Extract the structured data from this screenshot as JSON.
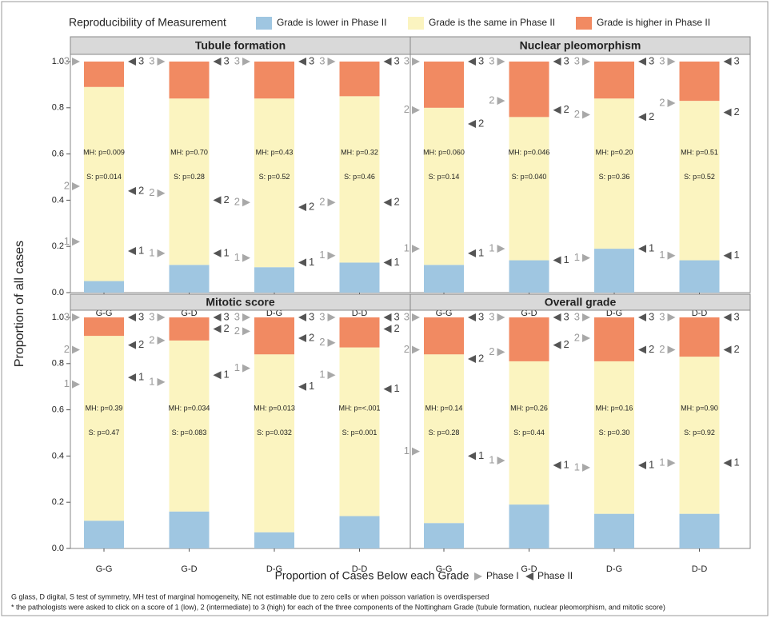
{
  "chart_data": {
    "type": "bar",
    "stacked": true,
    "legend_title": "Reproducibility of Measurement",
    "series": [
      {
        "name": "Grade is lower in Phase II",
        "color": "#9fc6e1"
      },
      {
        "name": "Grade is the same in Phase II",
        "color": "#fbf4c0"
      },
      {
        "name": "Grade is higher in Phase II",
        "color": "#f18a62"
      }
    ],
    "y_label": "Proportion of all cases",
    "x_label": "Proportion of Cases Below each Grade",
    "marker_legend": [
      {
        "name": "Phase I",
        "color": "#a8a8a8"
      },
      {
        "name": "Phase II",
        "color": "#555555"
      }
    ],
    "grade_labels": [
      "1",
      "2",
      "3"
    ],
    "categories": [
      "G-G",
      "G-D",
      "D-G",
      "D-D"
    ],
    "ylim": [
      0,
      1
    ],
    "yticks": [
      {
        "value": 0,
        "label": "0.0"
      },
      0.2,
      0.4,
      0.6,
      0.8,
      {
        "value": 1,
        "label": "1.0"
      }
    ],
    "panels": [
      {
        "title": "Tubule formation",
        "values": [
          [
            0.05,
            0.84,
            0.11
          ],
          [
            0.12,
            0.72,
            0.16
          ],
          [
            0.11,
            0.73,
            0.16
          ],
          [
            0.13,
            0.72,
            0.15
          ]
        ],
        "mh": [
          "MH: p=0.009",
          "MH: p=0.70",
          "MH: p=0.43",
          "MH: p=0.32"
        ],
        "s": [
          "S: p=0.014",
          "S: p=0.28",
          "S: p=0.52",
          "S: p=0.46"
        ],
        "phase_i": [
          [
            0.22,
            0.46,
            1
          ],
          [
            0.17,
            0.43,
            1
          ],
          [
            0.15,
            0.39,
            1
          ],
          [
            0.16,
            0.39,
            1
          ]
        ],
        "phase_ii": [
          [
            0.18,
            0.44,
            1
          ],
          [
            0.17,
            0.4,
            1
          ],
          [
            0.13,
            0.37,
            1
          ],
          [
            0.13,
            0.39,
            1
          ]
        ]
      },
      {
        "title": "Nuclear pleomorphism",
        "values": [
          [
            0.12,
            0.68,
            0.2
          ],
          [
            0.14,
            0.62,
            0.24
          ],
          [
            0.19,
            0.65,
            0.16
          ],
          [
            0.14,
            0.69,
            0.17
          ]
        ],
        "mh": [
          "MH: p=0.060",
          "MH: p=0.046",
          "MH: p=0.20",
          "MH: p=0.51"
        ],
        "s": [
          "S: p=0.14",
          "S: p=0.040",
          "S: p=0.36",
          "S: p=0.52"
        ],
        "phase_i": [
          [
            0.19,
            0.79,
            1
          ],
          [
            0.19,
            0.83,
            1
          ],
          [
            0.15,
            0.77,
            1
          ],
          [
            0.16,
            0.82,
            1
          ]
        ],
        "phase_ii": [
          [
            0.17,
            0.73,
            1
          ],
          [
            0.14,
            0.79,
            1
          ],
          [
            0.19,
            0.76,
            1
          ],
          [
            0.16,
            0.78,
            1
          ]
        ]
      },
      {
        "title": "Mitotic score",
        "values": [
          [
            0.12,
            0.8,
            0.08
          ],
          [
            0.16,
            0.74,
            0.1
          ],
          [
            0.07,
            0.77,
            0.16
          ],
          [
            0.14,
            0.73,
            0.13
          ]
        ],
        "mh": [
          "MH: p=0.39",
          "MH: p=0.034",
          "MH: p=0.013",
          "MH: p=<.001"
        ],
        "s": [
          "S: p=0.47",
          "S: p=0.083",
          "S: p=0.032",
          "S: p=0.001"
        ],
        "phase_i": [
          [
            0.71,
            0.86,
            1
          ],
          [
            0.72,
            0.9,
            1
          ],
          [
            0.78,
            0.94,
            1
          ],
          [
            0.75,
            0.89,
            1
          ]
        ],
        "phase_ii": [
          [
            0.74,
            0.88,
            1
          ],
          [
            0.75,
            0.95,
            1
          ],
          [
            0.7,
            0.91,
            1
          ],
          [
            0.69,
            0.95,
            1
          ]
        ]
      },
      {
        "title": "Overall grade",
        "values": [
          [
            0.11,
            0.73,
            0.16
          ],
          [
            0.19,
            0.62,
            0.19
          ],
          [
            0.15,
            0.66,
            0.19
          ],
          [
            0.15,
            0.68,
            0.17
          ]
        ],
        "mh": [
          "MH: p=0.14",
          "MH: p=0.26",
          "MH: p=0.16",
          "MH: p=0.90"
        ],
        "s": [
          "S: p=0.28",
          "S: p=0.44",
          "S: p=0.30",
          "S: p=0.92"
        ],
        "phase_i": [
          [
            0.42,
            0.86,
            1
          ],
          [
            0.38,
            0.85,
            1
          ],
          [
            0.35,
            0.91,
            1
          ],
          [
            0.37,
            0.86,
            1
          ]
        ],
        "phase_ii": [
          [
            0.4,
            0.82,
            1
          ],
          [
            0.36,
            0.88,
            1
          ],
          [
            0.36,
            0.86,
            1
          ],
          [
            0.37,
            0.86,
            1
          ]
        ]
      }
    ]
  },
  "notes": [
    "G glass, D digital, S test of symmetry, MH test of marginal homogeneity, NE not estimable due to zero cells or when poisson variation is overdispersed",
    "* the pathologists were asked to click on a score of 1 (low), 2 (intermediate) to 3 (high) for each of the three components of the Nottingham Grade (tubule formation, nuclear pleomorphism, and mitotic score)"
  ]
}
